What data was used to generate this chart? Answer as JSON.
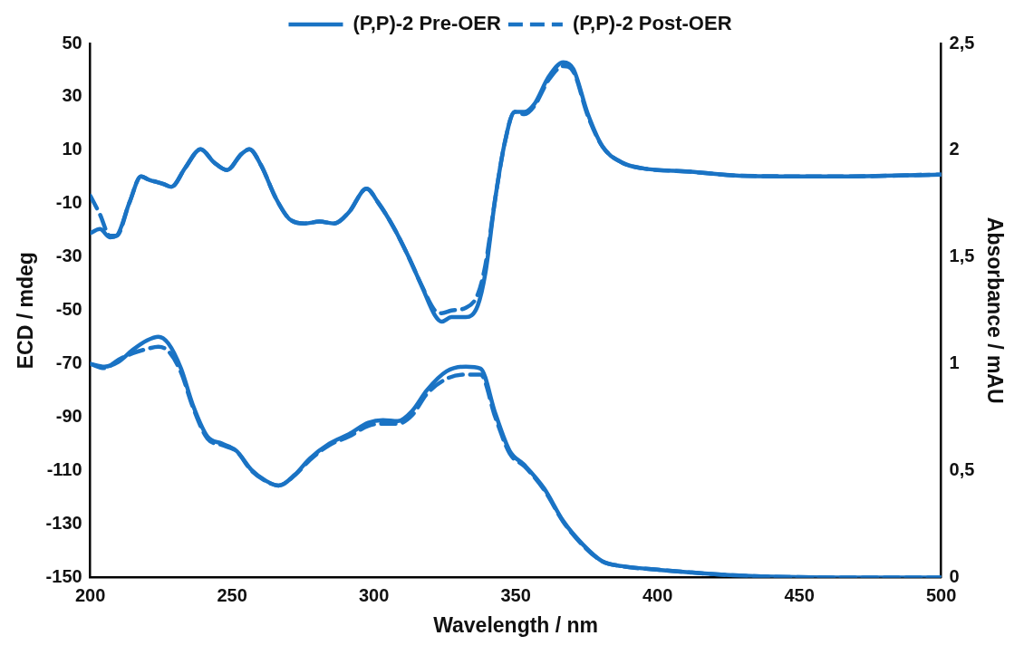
{
  "chart_data": {
    "type": "line",
    "xlabel": "Wavelength / nm",
    "ylabel": "ECD / mdeg",
    "y2label": "Absorbance / mAU",
    "xlim": [
      200,
      500
    ],
    "xticks": [
      200,
      250,
      300,
      350,
      400,
      450,
      500
    ],
    "ylim": [
      -150,
      50
    ],
    "yticks": [
      -150,
      -130,
      -110,
      -90,
      -70,
      -50,
      -30,
      -10,
      10,
      30,
      50
    ],
    "y2lim": [
      0,
      2.5
    ],
    "y2ticks": [
      {
        "value": 0,
        "label": "0"
      },
      {
        "value": 0.5,
        "label": "0,5"
      },
      {
        "value": 1,
        "label": "1"
      },
      {
        "value": 1.5,
        "label": "1,5"
      },
      {
        "value": 2,
        "label": "2"
      },
      {
        "value": 2.5,
        "label": "2,5"
      }
    ],
    "legend": "top",
    "marker": "none",
    "series": [
      {
        "name": "(P,P)-2 Pre-OER",
        "color": "#1a73c4",
        "line_style": "solid",
        "x": [
          200,
          203.4,
          206.9,
          209.3,
          213.8,
          217.9,
          220.6,
          225.8,
          228.6,
          233.4,
          238.9,
          243.7,
          248.2,
          253.3,
          256.1,
          260.2,
          265.4,
          270.5,
          275.7,
          280.8,
          286,
          291.2,
          297.4,
          301.5,
          306.7,
          311.8,
          317,
          321.5,
          323.9,
          327.3,
          332.4,
          336.6,
          339.3,
          342.8,
          346.2,
          349.6,
          353.1,
          356.5,
          361.7,
          366.8,
          370.3,
          375.4,
          380.6,
          387.5,
          394.4,
          411.6,
          428.8,
          463.2,
          500
        ],
        "values": [
          -21,
          -19.5,
          -22.6,
          -22,
          -9.6,
          0.2,
          -1,
          -2.6,
          -3.7,
          3.3,
          10.4,
          5.4,
          2.6,
          8.6,
          10.4,
          4.4,
          -7.9,
          -16,
          -17.4,
          -16.7,
          -17.4,
          -13.2,
          -4.4,
          -9.6,
          -18.4,
          -29,
          -41.2,
          -51.8,
          -54.2,
          -52.5,
          -52.5,
          -48.2,
          -36,
          -7.9,
          13.2,
          24.4,
          24.4,
          27.2,
          37.7,
          43,
          40.5,
          23.7,
          11.4,
          5.4,
          3.3,
          2,
          0.5,
          0.2,
          0.9
        ]
      },
      {
        "name": "(P,P)-2 Post-OER",
        "color": "#1a73c4",
        "line_style": "dashed",
        "x": [
          200,
          203.4,
          206.9,
          209.3,
          213.8,
          217.9,
          220.6,
          225.8,
          228.6,
          233.4,
          238.9,
          243.7,
          248.2,
          253.3,
          256.1,
          260.2,
          265.4,
          270.5,
          275.7,
          280.8,
          286,
          291.2,
          297.4,
          301.5,
          306.7,
          311.8,
          317,
          321.5,
          323.9,
          327.3,
          332.4,
          336.6,
          339.3,
          342.8,
          346.2,
          349.6,
          353.1,
          356.5,
          361.7,
          366.8,
          370.3,
          375.4,
          380.6,
          387.5,
          394.4,
          411.6,
          428.8,
          463.2,
          500
        ],
        "values": [
          -7,
          -14,
          -22,
          -22,
          -9.6,
          0.2,
          -1,
          -2.6,
          -3.7,
          3.3,
          10.4,
          5.4,
          2.6,
          8.6,
          10.4,
          4.4,
          -7.9,
          -16,
          -17.4,
          -16.7,
          -17.4,
          -13.2,
          -4.4,
          -9.6,
          -18.4,
          -29,
          -41,
          -50,
          -51,
          -50,
          -49,
          -44,
          -33,
          -7.9,
          13.2,
          24.4,
          23.5,
          26.5,
          36.5,
          41.5,
          39.5,
          23,
          11.4,
          5.4,
          3.3,
          2,
          0.5,
          0.2,
          0.9
        ]
      },
      {
        "color": "#1a73c4",
        "line_style": "solid",
        "axis": "y2",
        "x": [
          200,
          205,
          210,
          215,
          220,
          224,
          227.5,
          232,
          236.1,
          241.3,
          246.4,
          251.6,
          256.8,
          262,
          266.4,
          272.2,
          277.4,
          284.3,
          291.2,
          298,
          303.2,
          308.4,
          313.5,
          318.7,
          325.6,
          332.4,
          337.6,
          342.8,
          347.9,
          353.1,
          360,
          366.8,
          373.7,
          380.6,
          387.5,
          401.2,
          428.8,
          463.2,
          500
        ],
        "values": [
          1,
          0.987,
          1.01,
          1.066,
          1.11,
          1.127,
          1.096,
          0.978,
          0.81,
          0.66,
          0.627,
          0.592,
          0.504,
          0.452,
          0.43,
          0.482,
          0.557,
          0.627,
          0.671,
          0.724,
          0.737,
          0.732,
          0.78,
          0.877,
          0.965,
          0.987,
          0.978,
          0.768,
          0.592,
          0.526,
          0.417,
          0.263,
          0.154,
          0.075,
          0.053,
          0.035,
          0.009,
          0,
          0
        ]
      },
      {
        "color": "#1a73c4",
        "line_style": "dashed",
        "axis": "y2",
        "x": [
          200,
          205,
          210,
          215,
          220,
          224,
          227.5,
          232,
          236.1,
          241.3,
          246.4,
          251.6,
          256.8,
          262,
          266.4,
          272.2,
          277.4,
          284.3,
          291.2,
          298,
          303.2,
          308.4,
          313.5,
          318.7,
          325.6,
          332.4,
          337.6,
          342.8,
          347.9,
          353.1,
          360,
          366.8,
          373.7,
          380.6,
          387.5,
          401.2,
          428.8,
          463.2,
          500
        ],
        "values": [
          1,
          0.98,
          1.02,
          1.05,
          1.07,
          1.08,
          1.06,
          0.96,
          0.8,
          0.65,
          0.62,
          0.59,
          0.5,
          0.45,
          0.43,
          0.48,
          0.55,
          0.62,
          0.66,
          0.71,
          0.72,
          0.72,
          0.76,
          0.86,
          0.93,
          0.95,
          0.95,
          0.75,
          0.58,
          0.52,
          0.41,
          0.26,
          0.15,
          0.075,
          0.053,
          0.035,
          0.009,
          0,
          0
        ]
      }
    ]
  }
}
